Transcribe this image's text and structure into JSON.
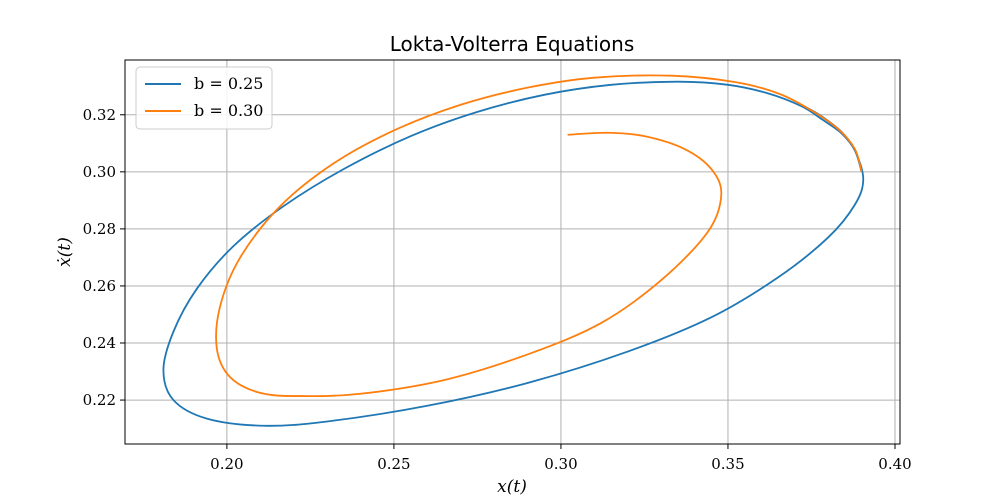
{
  "chart_data": {
    "type": "line",
    "title": "Lokta-Volterra Equations",
    "xlabel": "x(t)",
    "ylabel": "ẋ(t)",
    "xlim": [
      0.1695,
      0.4015
    ],
    "ylim": [
      0.2046,
      0.3392
    ],
    "xticks": [
      0.2,
      0.25,
      0.3,
      0.35,
      0.4
    ],
    "xtick_labels": [
      "0.20",
      "0.25",
      "0.30",
      "0.35",
      "0.40"
    ],
    "yticks": [
      0.22,
      0.24,
      0.26,
      0.28,
      0.3,
      0.32
    ],
    "ytick_labels": [
      "0.22",
      "0.24",
      "0.26",
      "0.28",
      "0.30",
      "0.32"
    ],
    "grid": true,
    "legend_position": "upper-left",
    "series": [
      {
        "name": "b = 0.25",
        "color": "#1f77b4",
        "points": [
          [
            0.39,
            0.3
          ],
          [
            0.388,
            0.3075
          ],
          [
            0.384,
            0.3135
          ],
          [
            0.378,
            0.3185
          ],
          [
            0.372,
            0.323
          ],
          [
            0.362,
            0.3275
          ],
          [
            0.35,
            0.3305
          ],
          [
            0.335,
            0.3316
          ],
          [
            0.315,
            0.3305
          ],
          [
            0.295,
            0.327
          ],
          [
            0.275,
            0.321
          ],
          [
            0.255,
            0.3125
          ],
          [
            0.235,
            0.301
          ],
          [
            0.217,
            0.288
          ],
          [
            0.202,
            0.274
          ],
          [
            0.191,
            0.259
          ],
          [
            0.184,
            0.244
          ],
          [
            0.181,
            0.2305
          ],
          [
            0.184,
            0.22
          ],
          [
            0.194,
            0.2135
          ],
          [
            0.211,
            0.211
          ],
          [
            0.23,
            0.2125
          ],
          [
            0.26,
            0.218
          ],
          [
            0.29,
            0.226
          ],
          [
            0.32,
            0.237
          ],
          [
            0.345,
            0.249
          ],
          [
            0.365,
            0.263
          ],
          [
            0.38,
            0.277
          ],
          [
            0.388,
            0.2885
          ],
          [
            0.3905,
            0.2975
          ],
          [
            0.388,
            0.3075
          ],
          [
            0.384,
            0.314
          ],
          [
            0.378,
            0.3195
          ],
          [
            0.372,
            0.3235
          ]
        ]
      },
      {
        "name": "b = 0.30",
        "color": "#ff7f0e",
        "points": [
          [
            0.39,
            0.3
          ],
          [
            0.388,
            0.308
          ],
          [
            0.383,
            0.315
          ],
          [
            0.375,
            0.3215
          ],
          [
            0.365,
            0.3275
          ],
          [
            0.352,
            0.3315
          ],
          [
            0.333,
            0.3337
          ],
          [
            0.31,
            0.333
          ],
          [
            0.29,
            0.3295
          ],
          [
            0.27,
            0.3235
          ],
          [
            0.25,
            0.3145
          ],
          [
            0.232,
            0.303
          ],
          [
            0.216,
            0.288
          ],
          [
            0.204,
            0.27
          ],
          [
            0.198,
            0.253
          ],
          [
            0.197,
            0.238
          ],
          [
            0.201,
            0.228
          ],
          [
            0.21,
            0.2225
          ],
          [
            0.222,
            0.2214
          ],
          [
            0.24,
            0.2222
          ],
          [
            0.265,
            0.227
          ],
          [
            0.29,
            0.236
          ],
          [
            0.312,
            0.247
          ],
          [
            0.33,
            0.262
          ],
          [
            0.344,
            0.279
          ],
          [
            0.348,
            0.292
          ],
          [
            0.345,
            0.301
          ],
          [
            0.337,
            0.308
          ],
          [
            0.325,
            0.3125
          ],
          [
            0.314,
            0.3137
          ],
          [
            0.302,
            0.313
          ]
        ]
      }
    ]
  }
}
